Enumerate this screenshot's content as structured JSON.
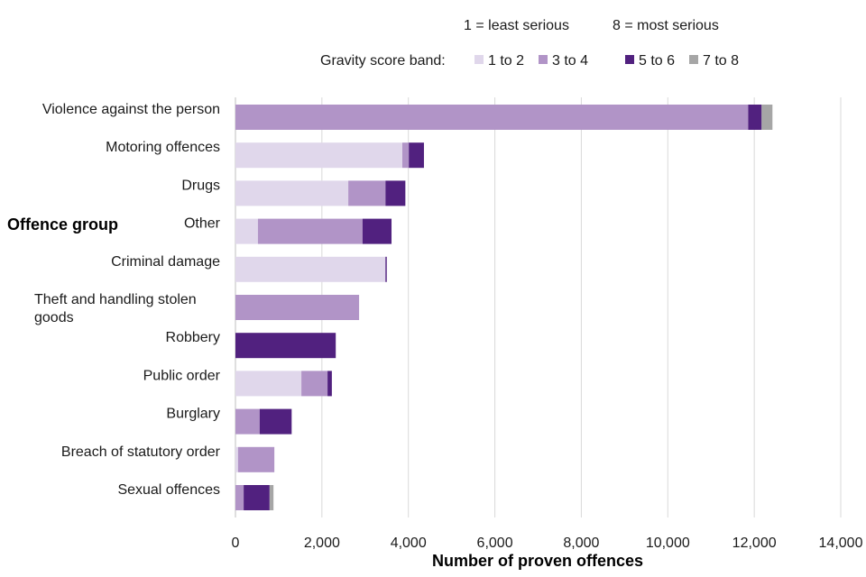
{
  "chart_data": {
    "type": "bar",
    "orientation": "horizontal",
    "stacked": true,
    "categories": [
      "Violence against the person",
      "Motoring offences",
      "Drugs",
      "Other",
      "Criminal damage",
      "Theft and handling stolen goods",
      "Robbery",
      "Public order",
      "Burglary",
      "Breach of statutory order",
      "Sexual offences"
    ],
    "series": [
      {
        "name": "1 to 2",
        "color": "#e0d7eb",
        "values": [
          0,
          3860,
          2610,
          520,
          3470,
          0,
          0,
          1525,
          0,
          60,
          0
        ]
      },
      {
        "name": "3 to 4",
        "color": "#b194c7",
        "values": [
          11860,
          150,
          860,
          2420,
          0,
          2860,
          0,
          605,
          560,
          840,
          190
        ]
      },
      {
        "name": "5 to 6",
        "color": "#51217f",
        "values": [
          310,
          350,
          460,
          670,
          30,
          0,
          2320,
          100,
          740,
          0,
          600
        ]
      },
      {
        "name": "7 to 8",
        "color": "#a6a6a6",
        "values": [
          250,
          0,
          0,
          0,
          0,
          0,
          0,
          0,
          0,
          0,
          90
        ]
      }
    ],
    "ylabel": "Offence group",
    "xlabel": "Number of proven offences",
    "xlim": [
      0,
      14000
    ],
    "xticks": [
      "0",
      "2,000",
      "4,000",
      "6,000",
      "8,000",
      "10,000",
      "12,000",
      "14,000"
    ],
    "grid": "vertical",
    "legend": {
      "position": "top-right",
      "title": "Gravity score band:",
      "note_left": "1 = least serious",
      "note_right": "8 = most serious"
    }
  }
}
